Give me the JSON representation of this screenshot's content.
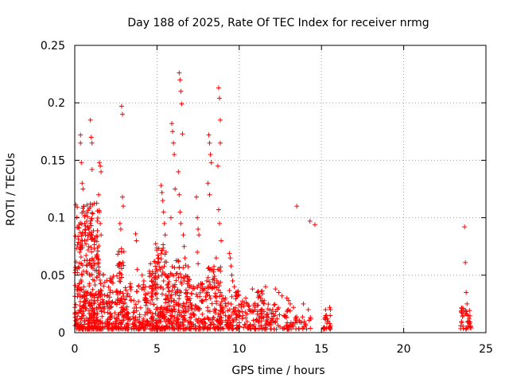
{
  "chart_data": {
    "type": "scatter",
    "title": "Day 188 of 2025, Rate Of TEC Index for receiver nrmg",
    "xlabel": "GPS time / hours",
    "ylabel": "ROTI / TECUs",
    "xlim": [
      0,
      25
    ],
    "ylim": [
      0,
      0.25
    ],
    "xticks": [
      0,
      5,
      10,
      15,
      20,
      25
    ],
    "xtick_labels": [
      "0",
      "5",
      "10",
      "15",
      "20",
      "25"
    ],
    "yticks": [
      0,
      0.05,
      0.1,
      0.15,
      0.2,
      0.25
    ],
    "ytick_labels": [
      "0",
      "0.05",
      "0.1",
      "0.15",
      "0.2",
      "0.25"
    ],
    "grid": true,
    "marker": "+",
    "color": "#ff0000",
    "series": [
      {
        "name": "ROTI",
        "x": [
          0.35,
          0.35,
          0.4,
          0.45,
          0.5,
          0.55,
          0.6,
          0.65,
          0.3,
          0.4,
          0.45,
          0.55,
          0.95,
          1.0,
          1.05,
          1.05,
          1.5,
          1.55,
          1.6,
          1.45,
          1.5,
          1.55,
          1.6,
          1.4,
          1.5,
          2.85,
          2.9,
          2.9,
          2.95,
          2.75,
          2.8,
          2.85,
          2.7,
          3.7,
          3.75,
          3.8,
          4.1,
          4.2,
          4.3,
          4.6,
          4.65,
          4.7,
          5.25,
          5.3,
          5.35,
          5.4,
          5.45,
          5.5,
          5.55,
          5.1,
          5.2,
          5.3,
          5.4,
          5.9,
          5.95,
          6.0,
          6.05,
          6.1,
          5.85,
          6.35,
          6.4,
          6.45,
          6.5,
          6.55,
          6.3,
          6.35,
          6.4,
          6.45,
          6.6,
          6.65,
          6.7,
          7.4,
          7.45,
          7.5,
          7.55,
          7.45,
          7.5,
          8.15,
          8.2,
          8.25,
          8.3,
          8.1,
          8.2,
          8.75,
          8.8,
          8.85,
          8.85,
          8.7,
          8.75,
          8.8,
          8.9,
          8.6,
          8.7,
          9.4,
          9.45,
          9.5,
          9.55,
          9.6,
          9.7,
          9.8,
          10.4,
          10.5,
          10.6,
          10.8,
          11.1,
          11.2,
          11.3,
          11.4,
          11.5,
          11.6,
          12.2,
          12.4,
          12.6,
          12.9,
          13.0,
          13.1,
          13.3,
          13.5,
          13.9,
          14.2,
          14.3,
          14.6,
          15.25,
          15.3,
          15.35,
          15.4,
          15.5,
          15.5,
          15.5,
          15.55,
          23.5,
          23.6,
          23.7,
          23.75,
          23.8,
          23.85,
          23.9,
          23.95,
          24.0,
          24.05
        ],
        "y": [
          0.172,
          0.165,
          0.148,
          0.13,
          0.125,
          0.11,
          0.095,
          0.085,
          0.07,
          0.06,
          0.05,
          0.04,
          0.185,
          0.17,
          0.142,
          0.165,
          0.148,
          0.145,
          0.14,
          0.12,
          0.105,
          0.095,
          0.085,
          0.06,
          0.05,
          0.197,
          0.19,
          0.118,
          0.11,
          0.095,
          0.09,
          0.07,
          0.06,
          0.086,
          0.08,
          0.055,
          0.05,
          0.045,
          0.04,
          0.06,
          0.05,
          0.045,
          0.128,
          0.122,
          0.115,
          0.105,
          0.095,
          0.085,
          0.07,
          0.065,
          0.055,
          0.05,
          0.045,
          0.182,
          0.175,
          0.165,
          0.155,
          0.125,
          0.1,
          0.226,
          0.22,
          0.21,
          0.199,
          0.173,
          0.14,
          0.12,
          0.105,
          0.095,
          0.085,
          0.075,
          0.065,
          0.118,
          0.1,
          0.09,
          0.085,
          0.07,
          0.06,
          0.172,
          0.165,
          0.155,
          0.148,
          0.13,
          0.12,
          0.213,
          0.204,
          0.185,
          0.165,
          0.145,
          0.107,
          0.095,
          0.08,
          0.065,
          0.055,
          0.069,
          0.065,
          0.058,
          0.05,
          0.045,
          0.04,
          0.035,
          0.03,
          0.025,
          0.02,
          0.038,
          0.035,
          0.032,
          0.03,
          0.028,
          0.025,
          0.04,
          0.038,
          0.035,
          0.032,
          0.03,
          0.028,
          0.025,
          0.022,
          0.11,
          0.025,
          0.02,
          0.097,
          0.094,
          0.02,
          0.015,
          0.012,
          0.01,
          0.008,
          0.005,
          0.022,
          0.02,
          0.018,
          0.015,
          0.092,
          0.061,
          0.035,
          0.025,
          0.015,
          0.01,
          0.008,
          0.005
        ],
        "dense_band": [
          {
            "from": 0.0,
            "to": 1.5,
            "ymax": 0.11
          },
          {
            "from": 1.5,
            "to": 2.6,
            "ymax": 0.05
          },
          {
            "from": 2.6,
            "to": 3.0,
            "ymax": 0.075
          },
          {
            "from": 3.0,
            "to": 4.4,
            "ymax": 0.04
          },
          {
            "from": 4.4,
            "to": 4.8,
            "ymax": 0.06
          },
          {
            "from": 4.8,
            "to": 5.5,
            "ymax": 0.075
          },
          {
            "from": 5.5,
            "to": 7.0,
            "ymax": 0.06
          },
          {
            "from": 7.0,
            "to": 8.0,
            "ymax": 0.04
          },
          {
            "from": 8.0,
            "to": 8.9,
            "ymax": 0.055
          },
          {
            "from": 8.9,
            "to": 10.0,
            "ymax": 0.035
          },
          {
            "from": 10.0,
            "to": 11.0,
            "ymax": 0.025
          },
          {
            "from": 11.0,
            "to": 11.6,
            "ymax": 0.035
          },
          {
            "from": 11.6,
            "to": 12.5,
            "ymax": 0.022
          },
          {
            "from": 12.5,
            "to": 13.3,
            "ymax": 0.018
          },
          {
            "from": 13.4,
            "to": 14.4,
            "ymax": 0.012
          },
          {
            "from": 15.1,
            "to": 15.6,
            "ymax": 0.012
          },
          {
            "from": 23.4,
            "to": 24.1,
            "ymax": 0.02
          }
        ]
      }
    ]
  }
}
